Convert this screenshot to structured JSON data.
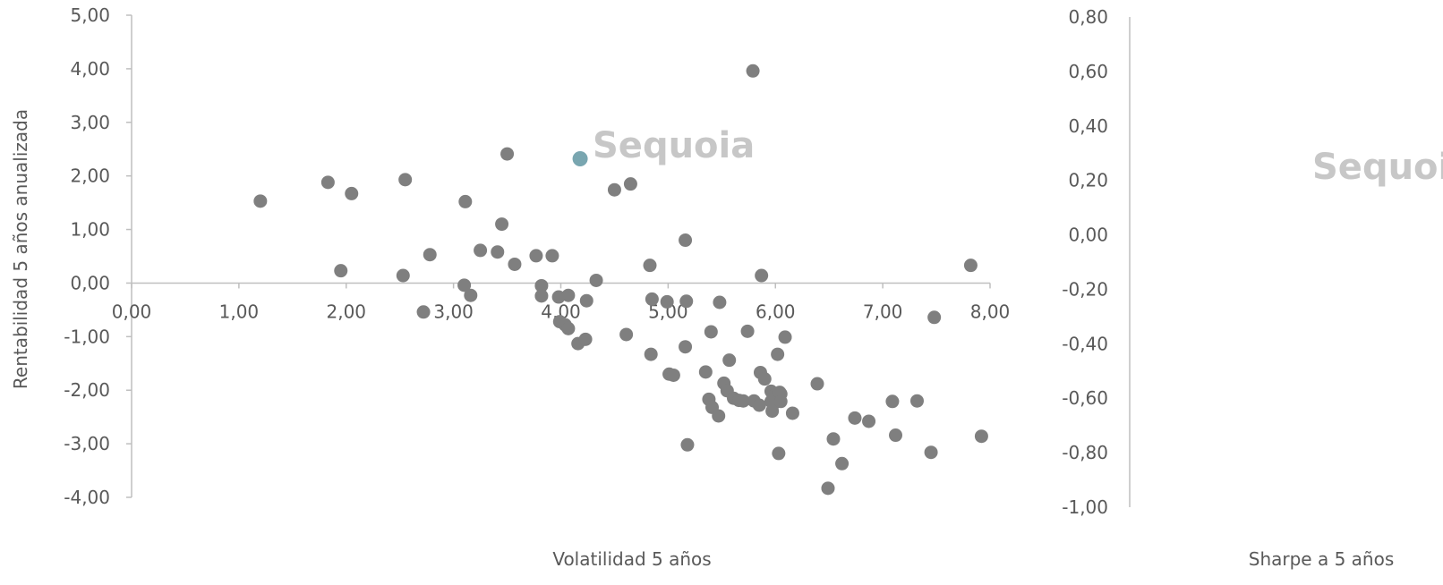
{
  "chart_data": [
    {
      "type": "scatter",
      "xlabel": "Volatilidad 5 años",
      "ylabel": "Rentabilidad 5 años anualizada",
      "xlim": [
        0,
        8
      ],
      "ylim": [
        -4,
        5
      ],
      "x_ticks": [
        "0,00",
        "1,00",
        "2,00",
        "3,00",
        "4,00",
        "5,00",
        "6,00",
        "7,00",
        "8,00"
      ],
      "y_ticks": [
        "5,00",
        "4,00",
        "3,00",
        "2,00",
        "1,00",
        "0,00",
        "-1,00",
        "-2,00",
        "-3,00",
        "-4,00"
      ],
      "grid": false,
      "legend": "none",
      "watermark": "Sequoia",
      "colors": {
        "points": "#7f7f7f",
        "highlight": "#79a6b0"
      },
      "highlight": {
        "x": 4.18,
        "y": 2.32
      },
      "points": [
        [
          1.2,
          1.53
        ],
        [
          1.83,
          1.88
        ],
        [
          1.95,
          0.23
        ],
        [
          2.05,
          1.67
        ],
        [
          2.53,
          0.14
        ],
        [
          2.55,
          1.93
        ],
        [
          2.72,
          -0.54
        ],
        [
          2.78,
          0.53
        ],
        [
          3.1,
          -0.04
        ],
        [
          3.11,
          1.52
        ],
        [
          3.16,
          -0.23
        ],
        [
          3.25,
          0.61
        ],
        [
          3.41,
          0.58
        ],
        [
          3.45,
          1.1
        ],
        [
          3.5,
          2.41
        ],
        [
          3.57,
          0.35
        ],
        [
          3.77,
          0.51
        ],
        [
          3.82,
          -0.05
        ],
        [
          3.82,
          -0.24
        ],
        [
          3.92,
          0.51
        ],
        [
          3.98,
          -0.26
        ],
        [
          3.99,
          -0.72
        ],
        [
          4.04,
          -0.78
        ],
        [
          4.07,
          -0.85
        ],
        [
          4.07,
          -0.23
        ],
        [
          4.16,
          -1.13
        ],
        [
          4.23,
          -1.05
        ],
        [
          4.24,
          -0.33
        ],
        [
          4.33,
          0.05
        ],
        [
          4.5,
          1.74
        ],
        [
          4.61,
          -0.96
        ],
        [
          4.65,
          1.85
        ],
        [
          4.83,
          0.33
        ],
        [
          4.84,
          -1.33
        ],
        [
          4.85,
          -0.3
        ],
        [
          4.99,
          -0.35
        ],
        [
          5.01,
          -1.7
        ],
        [
          5.05,
          -1.72
        ],
        [
          5.16,
          0.8
        ],
        [
          5.16,
          -1.19
        ],
        [
          5.17,
          -0.34
        ],
        [
          5.18,
          -3.02
        ],
        [
          5.35,
          -1.66
        ],
        [
          5.38,
          -2.17
        ],
        [
          5.4,
          -0.91
        ],
        [
          5.41,
          -2.32
        ],
        [
          5.47,
          -2.48
        ],
        [
          5.48,
          -0.36
        ],
        [
          5.52,
          -1.87
        ],
        [
          5.55,
          -2.01
        ],
        [
          5.57,
          -1.44
        ],
        [
          5.61,
          -2.15
        ],
        [
          5.66,
          -2.19
        ],
        [
          5.7,
          -2.2
        ],
        [
          5.74,
          -0.9
        ],
        [
          5.79,
          3.96
        ],
        [
          5.8,
          -2.2
        ],
        [
          5.85,
          -2.28
        ],
        [
          5.86,
          -1.67
        ],
        [
          5.87,
          0.14
        ],
        [
          5.9,
          -1.79
        ],
        [
          5.96,
          -2.02
        ],
        [
          5.96,
          -2.21
        ],
        [
          5.97,
          -2.39
        ],
        [
          5.98,
          -2.26
        ],
        [
          5.98,
          -2.11
        ],
        [
          6.02,
          -1.33
        ],
        [
          6.03,
          -3.18
        ],
        [
          6.04,
          -2.04
        ],
        [
          6.05,
          -2.07
        ],
        [
          6.05,
          -2.21
        ],
        [
          6.09,
          -1.01
        ],
        [
          6.16,
          -2.43
        ],
        [
          6.39,
          -1.88
        ],
        [
          6.49,
          -3.83
        ],
        [
          6.54,
          -2.91
        ],
        [
          6.62,
          -3.37
        ],
        [
          6.74,
          -2.52
        ],
        [
          6.87,
          -2.58
        ],
        [
          7.09,
          -2.21
        ],
        [
          7.12,
          -2.84
        ],
        [
          7.32,
          -2.2
        ],
        [
          7.45,
          -3.16
        ],
        [
          7.48,
          -0.64
        ],
        [
          7.82,
          0.33
        ],
        [
          7.92,
          -2.86
        ]
      ]
    },
    {
      "type": "scatter",
      "xlabel": "Sharpe a 5 años",
      "ylabel": "",
      "ylim": [
        -1,
        0.8
      ],
      "y_ticks": [
        "0,80",
        "0,60",
        "0,40",
        "0,20",
        "0,00",
        "-0,20",
        "-0,40",
        "-0,60",
        "-0,80",
        "-1,00"
      ],
      "watermark": "Sequoia",
      "points": []
    }
  ]
}
